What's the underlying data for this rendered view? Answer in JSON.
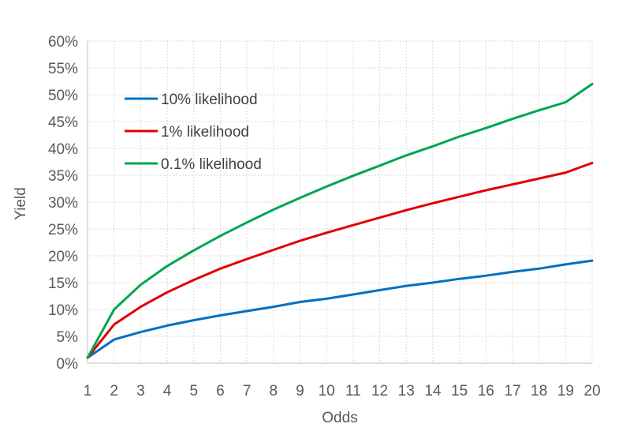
{
  "chart_data": {
    "type": "line",
    "title": "",
    "xlabel": "Odds",
    "ylabel": "Yield",
    "xlim": [
      1,
      20
    ],
    "ylim": [
      0,
      0.6
    ],
    "x_ticks": [
      1,
      2,
      3,
      4,
      5,
      6,
      7,
      8,
      9,
      10,
      11,
      12,
      13,
      14,
      15,
      16,
      17,
      18,
      19,
      20
    ],
    "x_tick_labels": [
      "1",
      "2",
      "3",
      "4",
      "5",
      "6",
      "7",
      "8",
      "9",
      "10",
      "11",
      "12",
      "13",
      "14",
      "15",
      "16",
      "17",
      "18",
      "19",
      "20"
    ],
    "y_ticks": [
      0,
      0.05,
      0.1,
      0.15,
      0.2,
      0.25,
      0.3,
      0.35,
      0.4,
      0.45,
      0.5,
      0.55,
      0.6
    ],
    "y_tick_labels": [
      "0%",
      "5%",
      "10%",
      "15%",
      "20%",
      "25%",
      "30%",
      "35%",
      "40%",
      "45%",
      "50%",
      "55%",
      "60%"
    ],
    "grid": true,
    "legend_position": "top-left",
    "x": [
      1,
      2,
      3,
      4,
      5,
      6,
      7,
      8,
      9,
      10,
      11,
      12,
      13,
      14,
      15,
      16,
      17,
      18,
      19,
      20
    ],
    "series": [
      {
        "name": "10% likelihood",
        "color": "#0070c0",
        "values": [
          0.01,
          0.044,
          0.058,
          0.07,
          0.08,
          0.089,
          0.097,
          0.105,
          0.114,
          0.12,
          0.128,
          0.136,
          0.144,
          0.15,
          0.157,
          0.163,
          0.17,
          0.176,
          0.184,
          0.191
        ]
      },
      {
        "name": "1% likelihood",
        "color": "#e00000",
        "values": [
          0.01,
          0.072,
          0.105,
          0.132,
          0.155,
          0.176,
          0.194,
          0.211,
          0.228,
          0.243,
          0.257,
          0.271,
          0.285,
          0.298,
          0.31,
          0.322,
          0.333,
          0.344,
          0.355,
          0.373
        ]
      },
      {
        "name": "0.1% likelihood",
        "color": "#00a550",
        "values": [
          0.01,
          0.1,
          0.146,
          0.181,
          0.21,
          0.237,
          0.262,
          0.286,
          0.308,
          0.329,
          0.349,
          0.368,
          0.387,
          0.404,
          0.422,
          0.438,
          0.455,
          0.471,
          0.486,
          0.52
        ]
      }
    ]
  }
}
